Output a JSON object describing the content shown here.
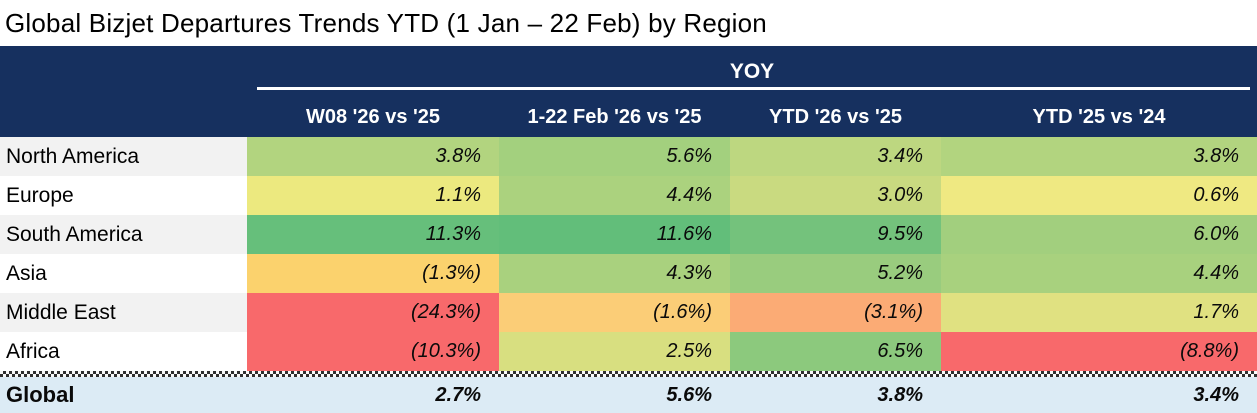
{
  "title": "Global Bizjet Departures Trends YTD (1 Jan – 22 Feb) by Region",
  "table": {
    "group_header": "YOY",
    "columns": [
      "W08 '26 vs '25",
      "1-22 Feb '26 vs '25",
      "YTD '26 vs '25",
      "YTD '25 vs '24"
    ],
    "rows": [
      {
        "region": "North America",
        "values": [
          "3.8%",
          "5.6%",
          "3.4%",
          "3.8%"
        ],
        "colors": [
          "#b2d47f",
          "#a3d07e",
          "#bdd780",
          "#b2d47f"
        ]
      },
      {
        "region": "Europe",
        "values": [
          "1.1%",
          "4.4%",
          "3.0%",
          "0.6%"
        ],
        "colors": [
          "#ece97f",
          "#abd27e",
          "#c9da80",
          "#efe982"
        ]
      },
      {
        "region": "South America",
        "values": [
          "11.3%",
          "11.6%",
          "9.5%",
          "6.0%"
        ],
        "colors": [
          "#66bf7b",
          "#62be7a",
          "#74c27c",
          "#a2cf7e"
        ]
      },
      {
        "region": "Asia",
        "values": [
          "(1.3%)",
          "4.3%",
          "5.2%",
          "4.4%"
        ],
        "colors": [
          "#fbd26d",
          "#a9d17e",
          "#99cc7e",
          "#a8d17e"
        ]
      },
      {
        "region": "Middle East",
        "values": [
          "(24.3%)",
          "(1.6%)",
          "(3.1%)",
          "1.7%"
        ],
        "colors": [
          "#f8696b",
          "#fbcd77",
          "#fbab75",
          "#e0e181"
        ]
      },
      {
        "region": "Africa",
        "values": [
          "(10.3%)",
          "2.5%",
          "6.5%",
          "(8.8%)"
        ],
        "colors": [
          "#f8696b",
          "#d8df80",
          "#8cc97d",
          "#f8696b"
        ]
      }
    ],
    "total_row": {
      "region": "Global",
      "values": [
        "2.7%",
        "5.6%",
        "3.8%",
        "3.4%"
      ]
    }
  },
  "colors": {
    "header_bg": "#16305f",
    "header_text": "#ffffff",
    "total_row_bg": "#dcebf5",
    "row_alt_bg": "#f2f2f2",
    "row_bg": "#ffffff"
  },
  "chart_data": {
    "type": "table",
    "title": "Global Bizjet Departures Trends YTD (1 Jan – 22 Feb) by Region",
    "group_header": "YOY",
    "columns": [
      "W08 '26 vs '25",
      "1-22 Feb '26 vs '25",
      "YTD '26 vs '25",
      "YTD '25 vs '24"
    ],
    "categories": [
      "North America",
      "Europe",
      "South America",
      "Asia",
      "Middle East",
      "Africa",
      "Global"
    ],
    "series": [
      {
        "name": "W08 '26 vs '25",
        "values": [
          3.8,
          1.1,
          11.3,
          -1.3,
          -24.3,
          -10.3,
          2.7
        ]
      },
      {
        "name": "1-22 Feb '26 vs '25",
        "values": [
          5.6,
          4.4,
          11.6,
          4.3,
          -1.6,
          2.5,
          5.6
        ]
      },
      {
        "name": "YTD '26 vs '25",
        "values": [
          3.4,
          3.0,
          9.5,
          5.2,
          -3.1,
          6.5,
          3.8
        ]
      },
      {
        "name": "YTD '25 vs '24",
        "values": [
          3.8,
          0.6,
          6.0,
          4.4,
          1.7,
          -8.8,
          3.4
        ]
      }
    ],
    "units": "% YoY change",
    "style": "heatmap red-yellow-green, negatives shown in parentheses"
  }
}
